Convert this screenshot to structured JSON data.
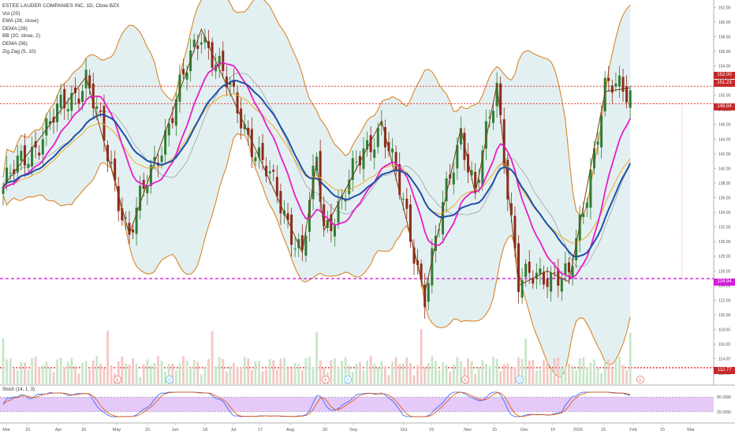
{
  "legend": {
    "title": "ESTEE LAUDER COMPANIES INC, 1D, Cboe BZX",
    "vol": "Vol (20)",
    "ema": "EMA (28, close)",
    "dema28": "DEMA (28)",
    "bb": "BB (20, close, 2)",
    "dema56": "DEMA (56)",
    "zigzag": "Zig Zag (5, 10)",
    "stoch": "Stoch (14, 1, 3)"
  },
  "price_labels": {
    "a": "152.00",
    "b": "151.23",
    "c": "148.84",
    "d": "124.94",
    "e": "112.77"
  },
  "stoch_labels": [
    "80.0000",
    "20.0000"
  ],
  "colors": {
    "candle_up": "#2e7d32",
    "candle_down": "#8d2a1a",
    "bollinger": "#d9862a",
    "bb_fill": "#e3f0f1",
    "ema": "#e8b23a",
    "dema28": "#e61ec8",
    "dema56": "#1c4fa8",
    "zigzag": "#7b3f14",
    "red_line": "#e53935",
    "magenta_line": "#d51cdb",
    "stoch_fill": "#e4c9f9"
  },
  "chart_data": {
    "type": "candlestick",
    "title": "ESTEE LAUDER COMPANIES INC, 1D, Cboe BZX",
    "x_ticks": [
      "Mar",
      "15",
      "Apr",
      "16",
      "May",
      "15",
      "Jun",
      "18",
      "Jul",
      "17",
      "Aug",
      "20",
      "Sep",
      "Oct",
      "15",
      "Nov",
      "15",
      "Dec",
      "15",
      "2016",
      "15",
      "Feb",
      "15",
      "Mar"
    ],
    "y_ticks": [
      112,
      114,
      116,
      118,
      120,
      122,
      124,
      126,
      128,
      130,
      132,
      134,
      136,
      138,
      140,
      142,
      144,
      146,
      148,
      150,
      152,
      154,
      156,
      158,
      160,
      162
    ],
    "ylim": [
      110.4,
      163
    ],
    "horizontal_lines": [
      151.23,
      148.84,
      124.94,
      112.77
    ],
    "zigzag_points": [
      [
        0,
        137.5
      ],
      [
        23,
        152.5
      ],
      [
        35,
        131.0
      ],
      [
        55,
        159.0
      ],
      [
        83,
        128.5
      ],
      [
        87,
        141.0
      ],
      [
        89,
        131.5
      ],
      [
        105,
        146.5
      ],
      [
        117,
        123.0
      ],
      [
        127,
        145.5
      ],
      [
        131,
        136.5
      ],
      [
        137,
        151.5
      ],
      [
        143,
        124.0
      ],
      [
        151,
        126.0
      ],
      [
        157,
        124.5
      ],
      [
        167,
        150.5
      ],
      [
        174,
        151.0
      ]
    ],
    "stochastic": {
      "upper": 80,
      "lower": 20
    }
  }
}
